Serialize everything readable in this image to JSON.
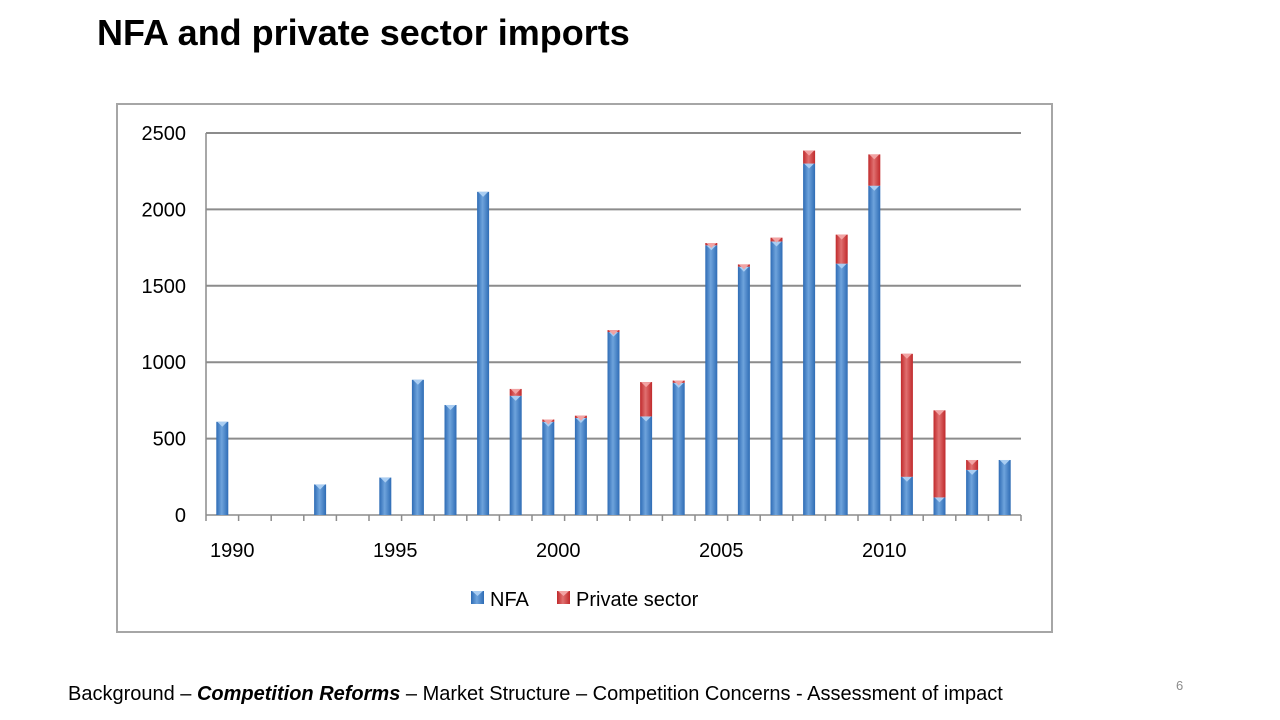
{
  "slide": {
    "title": "NFA and private sector imports",
    "page_number": "6"
  },
  "footer": {
    "part1": "Background – ",
    "part2": "Competition Reforms",
    "part3": " – Market Structure – Competition Concerns - Assessment of impact"
  },
  "colors": {
    "nfa": "#2e6cb5",
    "nfa_light": "#6ea3dc",
    "private": "#c0292b",
    "private_light": "#e07070",
    "grid": "#8c8c8c"
  },
  "chart_data": {
    "type": "bar",
    "stacked": true,
    "title": "",
    "xlabel": "",
    "ylabel": "",
    "ylim": [
      0,
      2500
    ],
    "yticks": [
      0,
      500,
      1000,
      1500,
      2000,
      2500
    ],
    "x_tick_labels": [
      "1990",
      "1995",
      "2000",
      "2005",
      "2010"
    ],
    "categories": [
      1990,
      1991,
      1992,
      1993,
      1994,
      1995,
      1996,
      1997,
      1998,
      1999,
      2000,
      2001,
      2002,
      2003,
      2004,
      2005,
      2006,
      2007,
      2008,
      2009,
      2010,
      2011,
      2012,
      2013,
      2014
    ],
    "grid": true,
    "legend_position": "bottom",
    "series": [
      {
        "name": "NFA",
        "values": [
          610,
          0,
          0,
          200,
          0,
          245,
          885,
          720,
          2115,
          780,
          610,
          635,
          1200,
          645,
          865,
          1765,
          1625,
          1790,
          2300,
          1645,
          2155,
          250,
          115,
          295,
          360
        ]
      },
      {
        "name": "Private sector",
        "values": [
          0,
          0,
          0,
          0,
          0,
          0,
          0,
          0,
          0,
          45,
          15,
          15,
          10,
          225,
          15,
          15,
          15,
          25,
          85,
          190,
          205,
          805,
          570,
          65,
          0
        ]
      }
    ]
  }
}
